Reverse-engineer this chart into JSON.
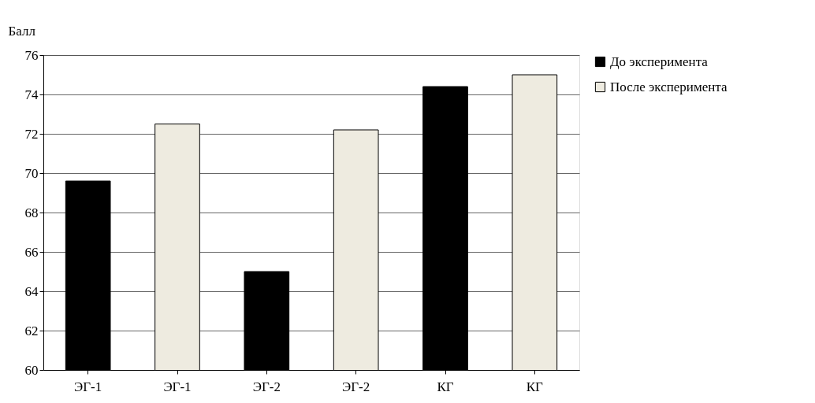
{
  "chart_data": {
    "type": "bar",
    "ylabel": "Балл",
    "categories": [
      "ЭГ-1",
      "ЭГ-1",
      "ЭГ-2",
      "ЭГ-2",
      "КГ",
      "КГ"
    ],
    "series": [
      {
        "name": "До эксперимента",
        "color": "#000000",
        "values": [
          69.6,
          null,
          65.0,
          null,
          74.4,
          null
        ]
      },
      {
        "name": "После эксперимента",
        "color": "#eeebe0",
        "values": [
          null,
          72.5,
          null,
          72.2,
          null,
          75.0
        ]
      }
    ],
    "ylim": [
      60,
      76
    ],
    "yticks": [
      60,
      62,
      64,
      66,
      68,
      70,
      72,
      74,
      76
    ],
    "grid": "y",
    "legend": "right"
  }
}
